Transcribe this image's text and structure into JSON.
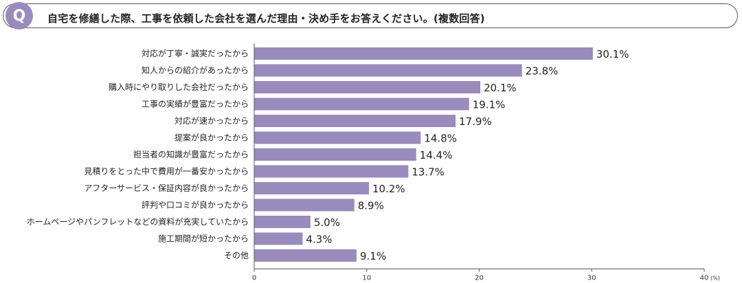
{
  "question": {
    "badge": "Q",
    "text": "自宅を修繕した際、工事を依頼した会社を選んだ理由・決め手をお答えください。(複数回答)"
  },
  "colors": {
    "bar": "#9a8bbd",
    "badge": "#9a8bbd",
    "axis": "#555555"
  },
  "chart_data": {
    "type": "bar",
    "orientation": "horizontal",
    "categories": [
      "対応が丁寧・誠実だったから",
      "知人からの紹介があったから",
      "購入時にやり取りした会社だったから",
      "工事の実績が豊富だったから",
      "対応が速かったから",
      "提案が良かったから",
      "担当者の知識が豊富だったから",
      "見積りをとった中で費用が一番安かったから",
      "アフターサービス・保証内容が良かったから",
      "評判や口コミが良かったから",
      "ホームページやパンフレットなどの資料が充実していたから",
      "施工期間が短かったから",
      "その他"
    ],
    "values": [
      30.1,
      23.8,
      20.1,
      19.1,
      17.9,
      14.8,
      14.4,
      13.7,
      10.2,
      8.9,
      5.0,
      4.3,
      9.1
    ],
    "value_labels": [
      "30.1%",
      "23.8%",
      "20.1%",
      "19.1%",
      "17.9%",
      "14.8%",
      "14.4%",
      "13.7%",
      "10.2%",
      "8.9%",
      "5.0%",
      "4.3%",
      "9.1%"
    ],
    "xlim": [
      0,
      40
    ],
    "xticks": [
      "0",
      "10",
      "20",
      "30",
      "40"
    ],
    "unit_label": "(%)",
    "grid": false,
    "legend": "none"
  }
}
